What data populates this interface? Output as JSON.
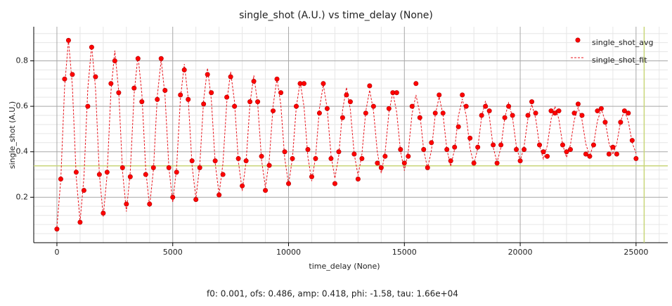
{
  "chart_data": {
    "type": "scatter_fit",
    "title": "single_shot (A.U.) vs time_delay (None)",
    "x_label": "time_delay (None)",
    "y_label": "single_shot (A.U.)",
    "annotation": "f0: 0.001, ofs: 0.486, amp: 0.418, phi: -1.58, tau: 1.66e+04",
    "xlim": [
      -1000,
      26370
    ],
    "ylim": [
      0,
      0.95
    ],
    "xticks": [
      0,
      5000,
      10000,
      15000,
      20000,
      25000
    ],
    "yticks": [
      0.2,
      0.4,
      0.6,
      0.8
    ],
    "xminor": [
      -1000,
      1000,
      2000,
      3000,
      4000,
      6000,
      7000,
      8000,
      9000,
      11000,
      12000,
      13000,
      14000,
      16000,
      17000,
      18000,
      19000,
      21000,
      22000,
      23000,
      24000,
      26000
    ],
    "yminor": [
      0.04,
      0.08,
      0.12,
      0.16,
      0.24,
      0.28,
      0.32,
      0.36,
      0.44,
      0.48,
      0.52,
      0.56,
      0.64,
      0.68,
      0.72,
      0.76,
      0.84,
      0.88,
      0.92
    ],
    "grid": true,
    "legend": "upper right",
    "cursor": {
      "x": 25350,
      "y": 0.338,
      "color": "#c8d67a"
    },
    "x": [
      0,
      167,
      333,
      500,
      667,
      833,
      1000,
      1167,
      1333,
      1500,
      1667,
      1833,
      2000,
      2167,
      2333,
      2500,
      2667,
      2833,
      3000,
      3167,
      3333,
      3500,
      3667,
      3833,
      4000,
      4167,
      4333,
      4500,
      4667,
      4833,
      5000,
      5167,
      5333,
      5500,
      5667,
      5833,
      6000,
      6167,
      6333,
      6500,
      6667,
      6833,
      7000,
      7167,
      7333,
      7500,
      7667,
      7833,
      8000,
      8167,
      8333,
      8500,
      8667,
      8833,
      9000,
      9167,
      9333,
      9500,
      9667,
      9833,
      10000,
      10167,
      10333,
      10500,
      10667,
      10833,
      11000,
      11167,
      11333,
      11500,
      11667,
      11833,
      12000,
      12167,
      12333,
      12500,
      12667,
      12833,
      13000,
      13167,
      13333,
      13500,
      13667,
      13833,
      14000,
      14167,
      14333,
      14500,
      14667,
      14833,
      15000,
      15167,
      15333,
      15500,
      15667,
      15833,
      16000,
      16167,
      16333,
      16500,
      16667,
      16833,
      17000,
      17167,
      17333,
      17500,
      17667,
      17833,
      18000,
      18167,
      18333,
      18500,
      18667,
      18833,
      19000,
      19167,
      19333,
      19500,
      19667,
      19833,
      20000,
      20167,
      20333,
      20500,
      20667,
      20833,
      21000,
      21167,
      21333,
      21500,
      21667,
      21833,
      22000,
      22167,
      22333,
      22500,
      22667,
      22833,
      23000,
      23167,
      23333,
      23500,
      23667,
      23833,
      24000,
      24167,
      24333,
      24500,
      24667,
      24833,
      25000
    ],
    "series": [
      {
        "name": "single_shot_avg",
        "color": "#ff0000",
        "mode": "markers",
        "values": [
          0.06,
          0.28,
          0.72,
          0.89,
          0.74,
          0.31,
          0.09,
          0.23,
          0.6,
          0.86,
          0.73,
          0.3,
          0.13,
          0.31,
          0.7,
          0.8,
          0.66,
          0.33,
          0.17,
          0.29,
          0.68,
          0.81,
          0.62,
          0.3,
          0.17,
          0.33,
          0.63,
          0.81,
          0.67,
          0.33,
          0.2,
          0.31,
          0.65,
          0.76,
          0.63,
          0.36,
          0.19,
          0.33,
          0.61,
          0.74,
          0.66,
          0.36,
          0.21,
          0.3,
          0.64,
          0.73,
          0.6,
          0.37,
          0.25,
          0.36,
          0.62,
          0.71,
          0.62,
          0.38,
          0.23,
          0.34,
          0.58,
          0.72,
          0.66,
          0.4,
          0.26,
          0.37,
          0.6,
          0.7,
          0.7,
          0.41,
          0.29,
          0.37,
          0.57,
          0.7,
          0.59,
          0.37,
          0.26,
          0.4,
          0.55,
          0.65,
          0.62,
          0.39,
          0.28,
          0.37,
          0.57,
          0.69,
          0.6,
          0.35,
          0.33,
          0.38,
          0.59,
          0.66,
          0.66,
          0.41,
          0.35,
          0.38,
          0.6,
          0.7,
          0.55,
          0.41,
          0.33,
          0.44,
          0.57,
          0.65,
          0.57,
          0.41,
          0.36,
          0.42,
          0.51,
          0.65,
          0.6,
          0.46,
          0.35,
          0.42,
          0.56,
          0.6,
          0.58,
          0.43,
          0.35,
          0.43,
          0.55,
          0.6,
          0.56,
          0.41,
          0.36,
          0.41,
          0.56,
          0.62,
          0.57,
          0.43,
          0.4,
          0.38,
          0.58,
          0.57,
          0.58,
          0.43,
          0.4,
          0.41,
          0.57,
          0.61,
          0.56,
          0.39,
          0.38,
          0.43,
          0.58,
          0.59,
          0.53,
          0.39,
          0.42,
          0.39,
          0.53,
          0.58,
          0.57,
          0.45,
          0.37
        ]
      },
      {
        "name": "single_shot_fit",
        "color": "#e8141c",
        "mode": "dashed",
        "values": [
          0.068,
          0.276,
          0.687,
          0.891,
          0.69,
          0.29,
          0.092,
          0.288,
          0.676,
          0.868,
          0.678,
          0.302,
          0.115,
          0.3,
          0.665,
          0.845,
          0.667,
          0.313,
          0.137,
          0.311,
          0.654,
          0.824,
          0.656,
          0.323,
          0.158,
          0.321,
          0.644,
          0.805,
          0.646,
          0.332,
          0.177,
          0.33,
          0.635,
          0.786,
          0.637,
          0.341,
          0.195,
          0.34,
          0.626,
          0.768,
          0.628,
          0.35,
          0.212,
          0.348,
          0.618,
          0.752,
          0.62,
          0.358,
          0.228,
          0.356,
          0.61,
          0.736,
          0.612,
          0.365,
          0.243,
          0.364,
          0.603,
          0.722,
          0.605,
          0.372,
          0.257,
          0.371,
          0.596,
          0.708,
          0.598,
          0.379,
          0.271,
          0.378,
          0.59,
          0.695,
          0.591,
          0.385,
          0.283,
          0.384,
          0.584,
          0.683,
          0.585,
          0.391,
          0.295,
          0.39,
          0.578,
          0.671,
          0.579,
          0.397,
          0.306,
          0.396,
          0.573,
          0.661,
          0.574,
          0.402,
          0.317,
          0.401,
          0.568,
          0.65,
          0.569,
          0.407,
          0.327,
          0.406,
          0.563,
          0.641,
          0.564,
          0.411,
          0.336,
          0.411,
          0.558,
          0.632,
          0.559,
          0.416,
          0.345,
          0.415,
          0.554,
          0.623,
          0.555,
          0.42,
          0.353,
          0.419,
          0.55,
          0.615,
          0.551,
          0.424,
          0.361,
          0.423,
          0.546,
          0.608,
          0.547,
          0.427,
          0.368,
          0.427,
          0.543,
          0.6,
          0.544,
          0.431,
          0.375,
          0.43,
          0.54,
          0.594,
          0.54,
          0.434,
          0.381,
          0.433,
          0.536,
          0.587,
          0.537,
          0.437,
          0.388,
          0.436,
          0.533,
          0.582,
          0.534,
          0.44,
          0.393
        ]
      }
    ]
  }
}
